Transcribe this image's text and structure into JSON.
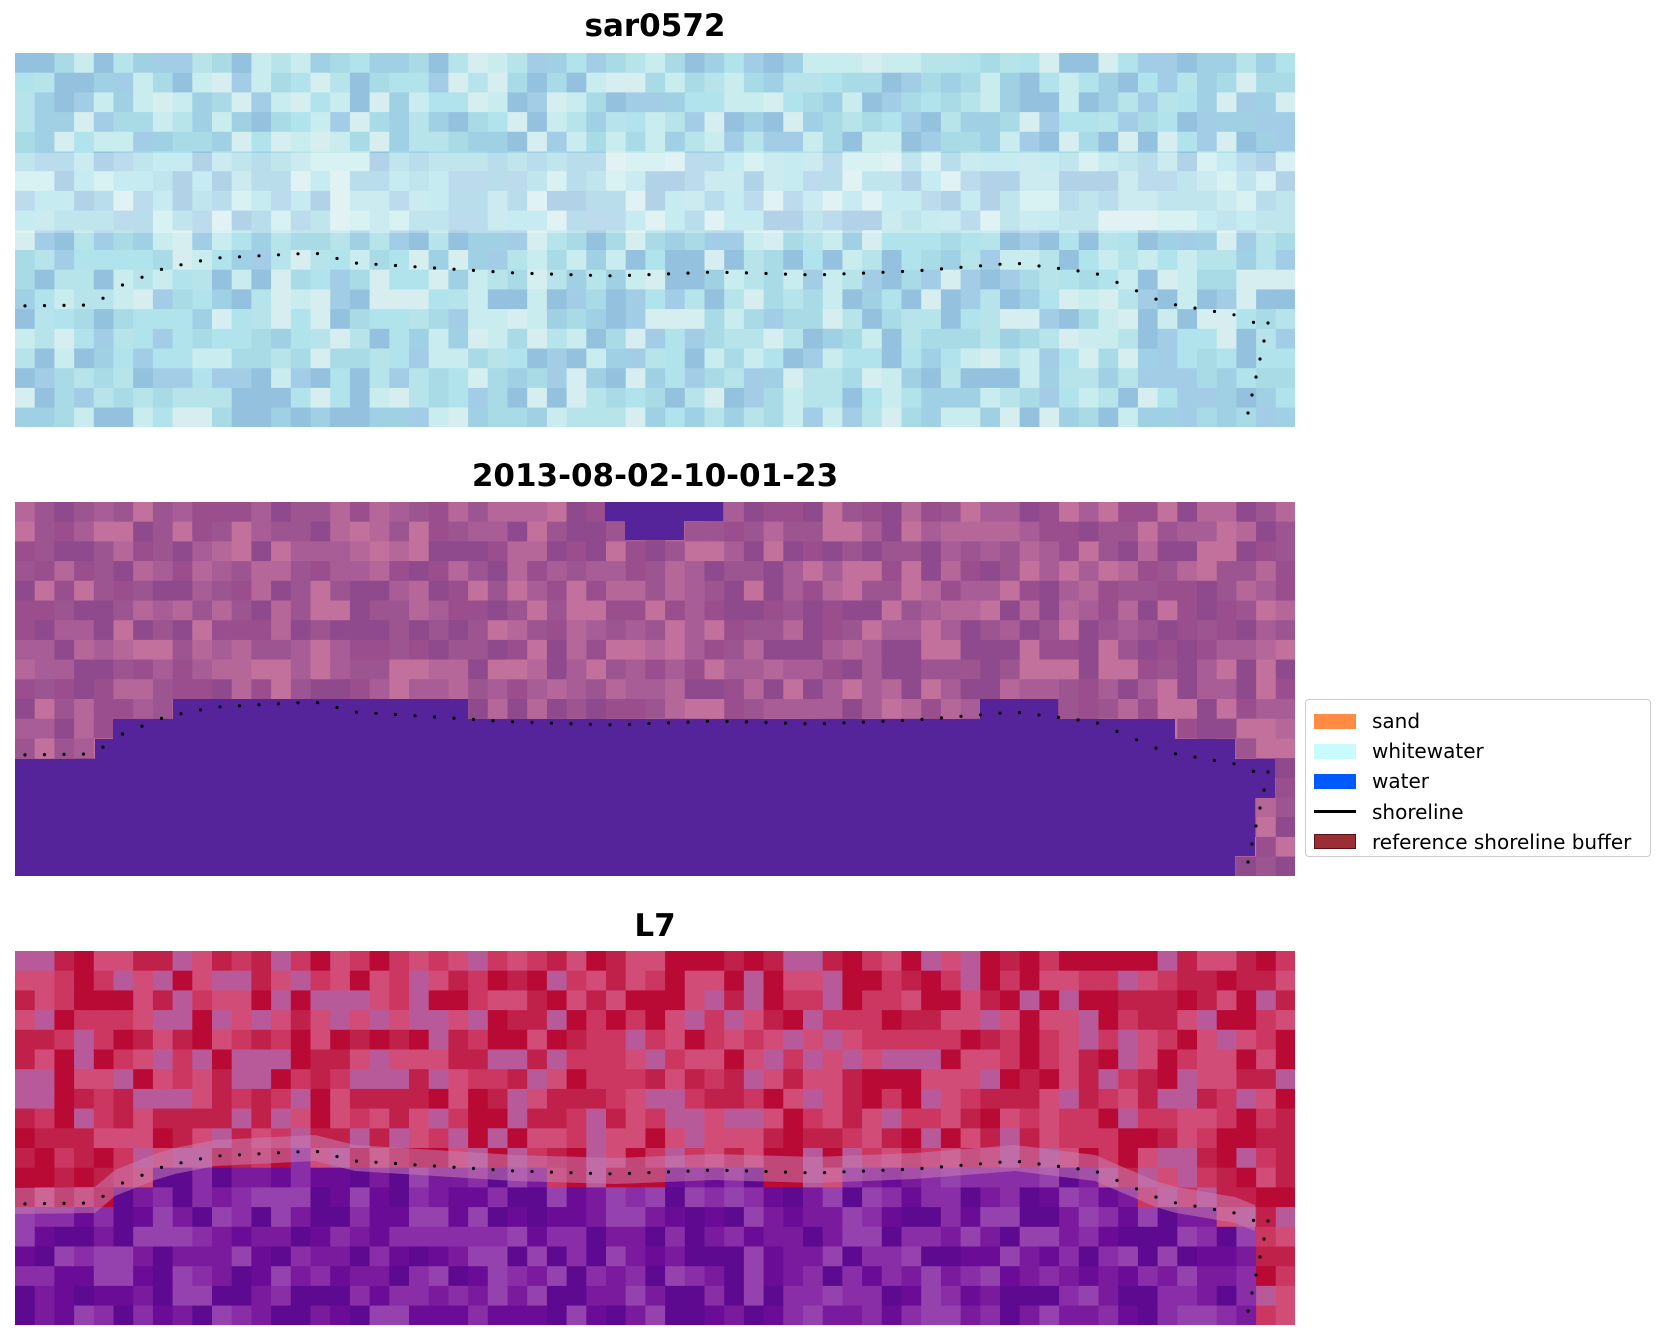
{
  "panels": [
    {
      "title": "sar0572",
      "layer": "rgb-composite",
      "palette": [
        "#a9dbe6",
        "#b7e4ea",
        "#9fd0e4",
        "#c9ecee",
        "#a3cde6",
        "#b0e3ec",
        "#d6eef0",
        "#94c1de"
      ]
    },
    {
      "title": "2013-08-02-10-01-23",
      "layer": "classified-image",
      "palette": [
        "#9a4e8e",
        "#a85d97",
        "#b6679a",
        "#8e4a8c",
        "#c1719c",
        "#9d5591"
      ],
      "water_color": "#55239a"
    },
    {
      "title": "L7",
      "layer": "index-image",
      "palette": [
        "#c0214a",
        "#cc3762",
        "#b90a36",
        "#d24c78",
        "#b85a9a"
      ],
      "lower_palette": [
        "#7a1b9e",
        "#6a0c96",
        "#8a2ea8",
        "#5d0a90",
        "#9642ae"
      ]
    }
  ],
  "legend": {
    "items": [
      {
        "label": "sand",
        "type": "patch",
        "color": "#ff8c42"
      },
      {
        "label": "whitewater",
        "type": "patch",
        "color": "#c8fbfb"
      },
      {
        "label": "water",
        "type": "patch",
        "color": "#005aff"
      },
      {
        "label": "shoreline",
        "type": "line",
        "color": "#000000"
      },
      {
        "label": "reference shoreline buffer",
        "type": "patch",
        "color": "#9b2d34",
        "edge": "#5a1218"
      }
    ]
  }
}
